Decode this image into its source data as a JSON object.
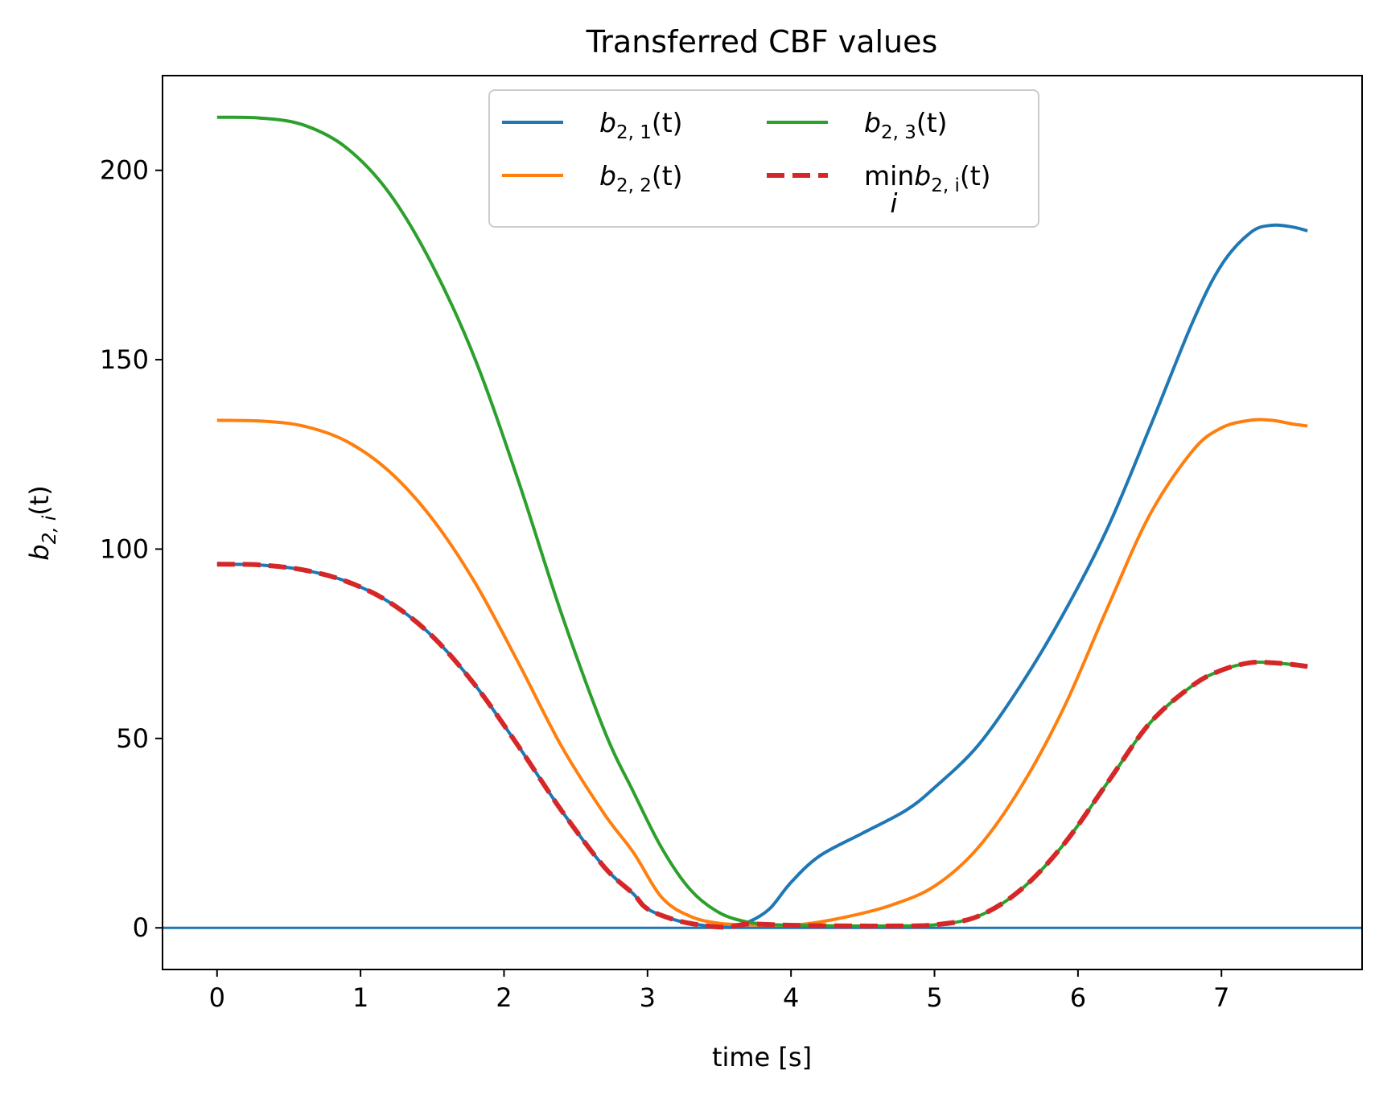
{
  "chart_data": {
    "type": "line",
    "title": "Transferred CBF values",
    "xlabel": "time [s]",
    "ylabel": "b_{2,i}(t)",
    "ylabel_parts": {
      "main": "b",
      "sub": "2, i",
      "suffix": "(t)"
    },
    "xlim": [
      -0.38,
      7.98
    ],
    "ylim": [
      -11,
      225
    ],
    "xticks": [
      0,
      1,
      2,
      3,
      4,
      5,
      6,
      7
    ],
    "yticks": [
      0,
      50,
      100,
      150,
      200
    ],
    "grid": false,
    "legend": {
      "position": "top-center",
      "columns": 2
    },
    "hline": {
      "y": 0,
      "color": "#1f77b4"
    },
    "series": [
      {
        "name": "b_{2,1}(t)",
        "legend": {
          "main": "b",
          "sub": "2, 1",
          "suffix": "(t)"
        },
        "color": "#1f77b4",
        "dash": "solid",
        "x": [
          0,
          0.3,
          0.6,
          0.9,
          1.2,
          1.5,
          1.8,
          2.1,
          2.4,
          2.7,
          2.9,
          3.0,
          3.2,
          3.4,
          3.55,
          3.7,
          3.85,
          4.0,
          4.2,
          4.5,
          4.8,
          5.0,
          5.3,
          5.6,
          5.9,
          6.2,
          6.5,
          6.8,
          7.0,
          7.2,
          7.35,
          7.5,
          7.6
        ],
        "y": [
          96,
          95.8,
          94.5,
          91.5,
          86,
          77,
          64,
          48,
          31,
          16,
          9,
          5,
          2,
          0.6,
          0.2,
          1.5,
          5,
          12,
          19,
          25,
          31,
          37,
          48,
          64,
          83,
          105,
          132,
          160,
          175,
          183.5,
          185.5,
          185,
          184
        ]
      },
      {
        "name": "b_{2,2}(t)",
        "legend": {
          "main": "b",
          "sub": "2, 2",
          "suffix": "(t)"
        },
        "color": "#ff7f0e",
        "dash": "solid",
        "x": [
          0,
          0.3,
          0.6,
          0.9,
          1.2,
          1.5,
          1.8,
          2.1,
          2.4,
          2.7,
          2.9,
          3.1,
          3.3,
          3.5,
          3.7,
          3.9,
          4.1,
          4.4,
          4.7,
          5.0,
          5.3,
          5.6,
          5.9,
          6.2,
          6.5,
          6.8,
          7.0,
          7.2,
          7.35,
          7.5,
          7.6
        ],
        "y": [
          134,
          133.8,
          132.5,
          128.5,
          120.5,
          108,
          91,
          70,
          48,
          30,
          20,
          8,
          3,
          1.2,
          0.8,
          0.7,
          1,
          3,
          6,
          11,
          21,
          37,
          58,
          84,
          109,
          126,
          132,
          134,
          134,
          133,
          132.5
        ]
      },
      {
        "name": "b_{2,3}(t)",
        "legend": {
          "main": "b",
          "sub": "2, 3",
          "suffix": "(t)"
        },
        "color": "#2ca02c",
        "dash": "solid",
        "x": [
          0,
          0.3,
          0.6,
          0.9,
          1.2,
          1.5,
          1.8,
          2.1,
          2.4,
          2.7,
          2.9,
          3.1,
          3.3,
          3.5,
          3.7,
          3.9,
          4.1,
          4.4,
          4.7,
          5.0,
          5.3,
          5.6,
          5.9,
          6.2,
          6.5,
          6.8,
          7.0,
          7.2,
          7.35,
          7.5,
          7.6
        ],
        "y": [
          214,
          213.8,
          212,
          206,
          194,
          175,
          150,
          118,
          83,
          52,
          36,
          21,
          10,
          4,
          1.5,
          0.8,
          0.6,
          0.5,
          0.5,
          0.8,
          3,
          10,
          22,
          38,
          54,
          64,
          68,
          70,
          70,
          69.5,
          69
        ]
      },
      {
        "name": "min_i b_{2,i}(t)",
        "legend": {
          "main": "min",
          "below": "i",
          "mid": "b",
          "sub": "2, i",
          "suffix": "(t)"
        },
        "color": "#d62728",
        "dash": "dashed",
        "x": [
          0,
          0.3,
          0.6,
          0.9,
          1.2,
          1.5,
          1.8,
          2.1,
          2.4,
          2.7,
          2.9,
          3.0,
          3.2,
          3.4,
          3.55,
          3.7,
          3.9,
          4.1,
          4.4,
          4.7,
          5.0,
          5.3,
          5.6,
          5.9,
          6.2,
          6.5,
          6.8,
          7.0,
          7.2,
          7.35,
          7.5,
          7.6
        ],
        "y": [
          96,
          95.8,
          94.5,
          91.5,
          86,
          77,
          64,
          48,
          31,
          16,
          9,
          5,
          2,
          0.6,
          0.2,
          1,
          0.8,
          0.6,
          0.5,
          0.5,
          0.8,
          3,
          10,
          22,
          38,
          54,
          64,
          68,
          70,
          70,
          69.5,
          69
        ]
      }
    ]
  }
}
